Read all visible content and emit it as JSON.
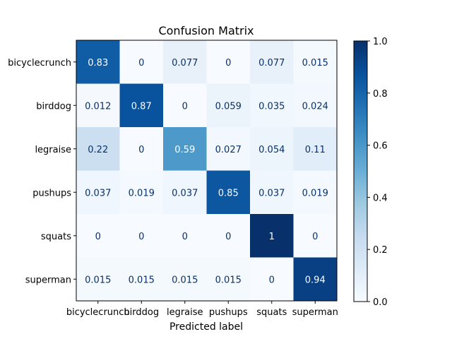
{
  "chart_data": {
    "type": "heatmap",
    "title": "Confusion Matrix",
    "xlabel": "Predicted label",
    "ylabel": "",
    "x_categories": [
      "bicyclecrunch",
      "birddog",
      "legraise",
      "pushups",
      "squats",
      "superman"
    ],
    "y_categories": [
      "bicyclecrunch",
      "birddog",
      "legraise",
      "pushups",
      "squats",
      "superman"
    ],
    "values": [
      [
        0.83,
        0,
        0.077,
        0,
        0.077,
        0.015
      ],
      [
        0.012,
        0.87,
        0,
        0.059,
        0.035,
        0.024
      ],
      [
        0.22,
        0,
        0.59,
        0.027,
        0.054,
        0.11
      ],
      [
        0.037,
        0.019,
        0.037,
        0.85,
        0.037,
        0.019
      ],
      [
        0,
        0,
        0,
        0,
        1,
        0
      ],
      [
        0.015,
        0.015,
        0.015,
        0.015,
        0,
        0.94
      ]
    ],
    "colorbar": {
      "min": 0.0,
      "max": 1.0,
      "ticks": [
        "0.0",
        "0.2",
        "0.4",
        "0.6",
        "0.8",
        "1.0"
      ]
    },
    "colormap": "Blues",
    "colors": {
      "low": "#f7fbff",
      "high": "#08306b",
      "text_dark": "#08306b",
      "text_light": "#ffffff"
    }
  }
}
